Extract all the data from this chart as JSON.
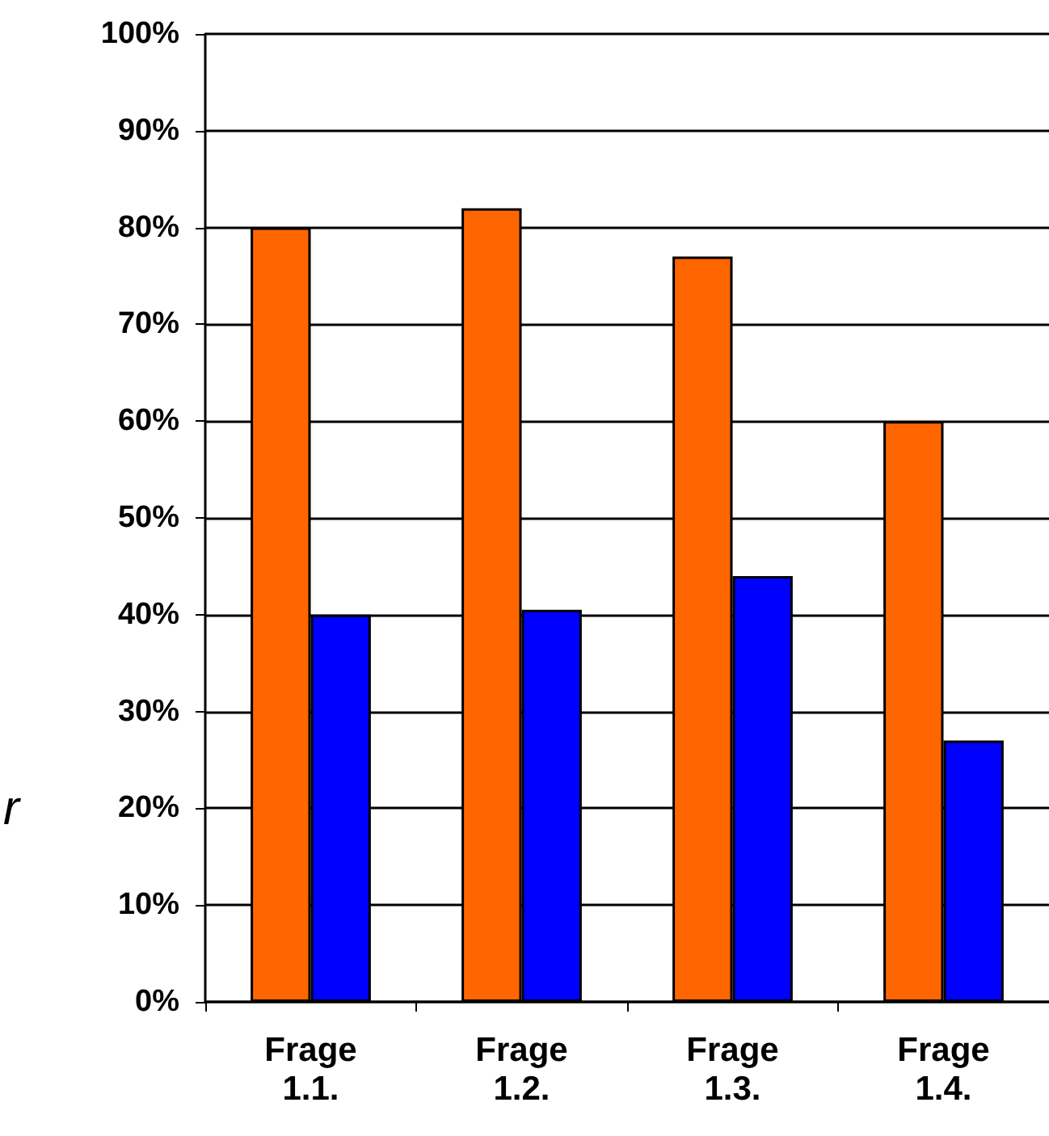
{
  "chart_data": {
    "type": "bar",
    "categories": [
      "Frage\n1.1.",
      "Frage\n1.2.",
      "Frage\n1.3.",
      "Frage\n1.4."
    ],
    "series": [
      {
        "color": "#ff6600",
        "values": [
          80,
          82,
          77,
          60
        ]
      },
      {
        "color": "#0000ff",
        "values": [
          40,
          40.5,
          44,
          27
        ]
      }
    ],
    "ylim": [
      0,
      100
    ],
    "yticks": [
      {
        "value": 0,
        "label": "0%"
      },
      {
        "value": 10,
        "label": "10%"
      },
      {
        "value": 20,
        "label": "20%"
      },
      {
        "value": 30,
        "label": "30%"
      },
      {
        "value": 40,
        "label": "40%"
      },
      {
        "value": 50,
        "label": "50%"
      },
      {
        "value": 60,
        "label": "60%"
      },
      {
        "value": 70,
        "label": "70%"
      },
      {
        "value": 80,
        "label": "80%"
      },
      {
        "value": 90,
        "label": "90%"
      },
      {
        "value": 100,
        "label": "100%"
      }
    ],
    "grid": "y",
    "annotations": [
      "r"
    ]
  }
}
